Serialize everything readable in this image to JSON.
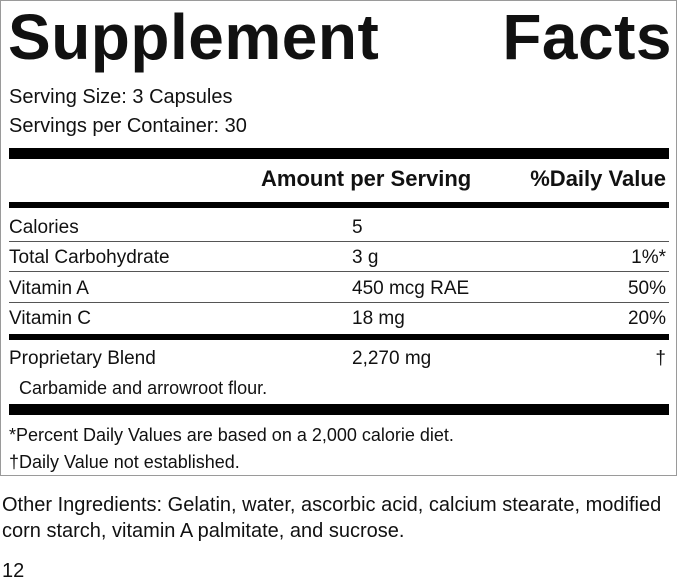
{
  "title": {
    "word1": "Supplement",
    "word2": "Facts"
  },
  "serving": {
    "size": "Serving Size: 3 Capsules",
    "per_container": "Servings per Container: 30"
  },
  "header": {
    "amount": "Amount per Serving",
    "dv": "%Daily Value"
  },
  "rows": [
    {
      "name": "Calories",
      "amount": "5",
      "dv": ""
    },
    {
      "name": "Total Carbohydrate",
      "amount": "3 g",
      "dv": "1%*"
    },
    {
      "name": "Vitamin A",
      "amount": "450 mcg RAE",
      "dv": "50%"
    },
    {
      "name": "Vitamin C",
      "amount": "18 mg",
      "dv": "20%"
    }
  ],
  "blend": {
    "name": "Proprietary Blend",
    "amount": "2,270 mg",
    "dv": "†",
    "ingredients": "Carbamide and arrowroot flour."
  },
  "footnotes": {
    "percent": "*Percent Daily Values are based on a 2,000 calorie diet.",
    "not_established": "†Daily Value not established."
  },
  "other_ingredients": "Other Ingredients: Gelatin, water, ascorbic acid, calcium stearate, modified corn starch, vitamin A palmitate, and sucrose.",
  "page_number": "12"
}
